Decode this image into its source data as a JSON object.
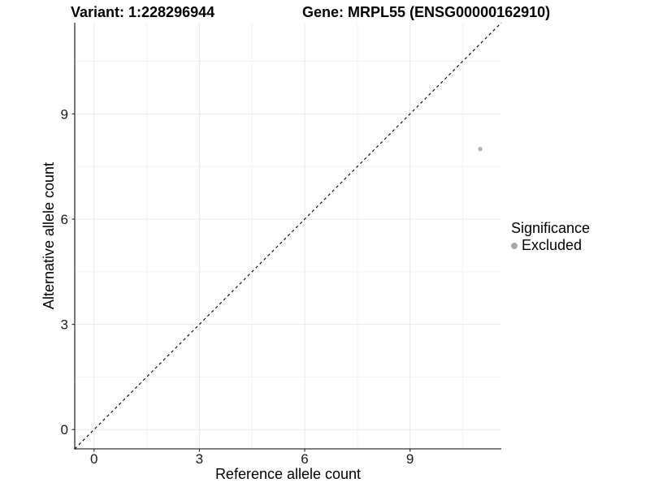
{
  "header": {
    "variant_title": "Variant: 1:228296944",
    "gene_title": "Gene: MRPL55 (ENSG00000162910)"
  },
  "legend": {
    "title": "Significance",
    "items": [
      {
        "label": "Excluded",
        "color": "#a8a8a8"
      }
    ]
  },
  "chart_data": {
    "type": "scatter",
    "title": "",
    "xlabel": "Reference allele count",
    "ylabel": "Alternative allele count",
    "xlim": [
      -0.55,
      11.6
    ],
    "ylim": [
      -0.55,
      11.6
    ],
    "x_ticks": [
      0,
      3,
      6,
      9
    ],
    "y_ticks": [
      0,
      3,
      6,
      9
    ],
    "x_minor_ticks": [
      1.5,
      4.5,
      7.5,
      10.5
    ],
    "y_minor_ticks": [
      1.5,
      4.5,
      7.5,
      10.5
    ],
    "grid": true,
    "legend_position": "right",
    "series": [
      {
        "name": "Excluded",
        "color": "#b3b3b3",
        "points": [
          {
            "x": 11,
            "y": 8
          }
        ]
      }
    ],
    "reference_line": {
      "type": "identity",
      "style": "dashed",
      "color": "#000000",
      "from": [
        -0.55,
        -0.55
      ],
      "to": [
        11.6,
        11.6
      ]
    },
    "style": {
      "axis_color": "#333333",
      "major_grid_color": "#e8e8e8",
      "minor_grid_color": "#f2f2f2",
      "tick_label_color": "#1a1a1a"
    }
  }
}
